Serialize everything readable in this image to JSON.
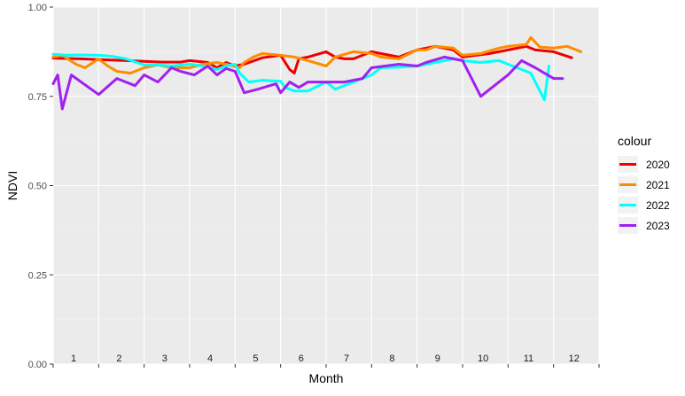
{
  "chart_data": {
    "type": "line",
    "xlabel": "Month",
    "ylabel": "NDVI",
    "xlim": [
      1,
      13
    ],
    "ylim": [
      0,
      1
    ],
    "x_tick_labels": [
      "1",
      "2",
      "3",
      "4",
      "5",
      "6",
      "7",
      "8",
      "9",
      "10",
      "11",
      "12"
    ],
    "y_ticks": [
      0,
      0.25,
      0.5,
      0.75,
      1.0
    ],
    "y_tick_labels": [
      "0.00",
      "0.25",
      "0.50",
      "0.75",
      "1.00"
    ],
    "grid": true,
    "background": "#EBEBEB",
    "legend": {
      "title": "colour",
      "placement": "right"
    },
    "series": [
      {
        "name": "2020",
        "color": "#EE0000",
        "x": [
          1.0,
          1.6,
          2.0,
          2.6,
          3.0,
          3.4,
          3.8,
          4.0,
          4.4,
          4.6,
          4.8,
          5.0,
          5.2,
          5.6,
          6.0,
          6.2,
          6.3,
          6.4,
          6.6,
          7.0,
          7.2,
          7.4,
          7.6,
          8.0,
          8.2,
          8.6,
          9.0,
          9.2,
          9.4,
          9.8,
          10.0,
          10.6,
          11.0,
          11.4,
          11.6,
          12.0,
          12.4
        ],
        "y": [
          0.857,
          0.855,
          0.853,
          0.85,
          0.848,
          0.846,
          0.846,
          0.85,
          0.845,
          0.83,
          0.845,
          0.835,
          0.84,
          0.858,
          0.865,
          0.825,
          0.815,
          0.855,
          0.86,
          0.875,
          0.86,
          0.855,
          0.855,
          0.875,
          0.87,
          0.86,
          0.88,
          0.885,
          0.89,
          0.88,
          0.86,
          0.87,
          0.88,
          0.89,
          0.88,
          0.875,
          0.858
        ]
      },
      {
        "name": "2021",
        "color": "#FF8C00",
        "x": [
          1.0,
          1.2,
          1.5,
          1.7,
          2.0,
          2.2,
          2.4,
          2.7,
          3.0,
          3.3,
          3.6,
          4.0,
          4.3,
          4.6,
          4.8,
          5.1,
          5.2,
          5.4,
          5.6,
          6.0,
          6.3,
          6.6,
          7.0,
          7.2,
          7.6,
          8.0,
          8.2,
          8.6,
          9.0,
          9.2,
          9.4,
          9.8,
          10.0,
          10.4,
          10.8,
          11.0,
          11.4,
          11.5,
          11.7,
          12.0,
          12.3,
          12.6
        ],
        "y": [
          0.86,
          0.865,
          0.84,
          0.83,
          0.855,
          0.835,
          0.82,
          0.815,
          0.83,
          0.838,
          0.83,
          0.83,
          0.84,
          0.845,
          0.84,
          0.83,
          0.845,
          0.86,
          0.87,
          0.865,
          0.86,
          0.85,
          0.835,
          0.86,
          0.875,
          0.87,
          0.86,
          0.855,
          0.88,
          0.88,
          0.89,
          0.885,
          0.865,
          0.87,
          0.885,
          0.89,
          0.895,
          0.915,
          0.888,
          0.885,
          0.89,
          0.875
        ]
      },
      {
        "name": "2022",
        "color": "#00FFFF",
        "x": [
          1.0,
          1.3,
          1.6,
          2.0,
          2.3,
          2.6,
          3.0,
          3.3,
          3.6,
          4.0,
          4.3,
          4.6,
          4.8,
          5.0,
          5.1,
          5.3,
          5.6,
          6.0,
          6.1,
          6.3,
          6.6,
          7.0,
          7.2,
          7.6,
          8.0,
          8.2,
          8.6,
          9.0,
          9.4,
          9.8,
          10.0,
          10.4,
          10.8,
          11.0,
          11.3,
          11.5,
          11.8,
          11.9
        ],
        "y": [
          0.868,
          0.865,
          0.866,
          0.865,
          0.862,
          0.855,
          0.838,
          0.838,
          0.835,
          0.84,
          0.835,
          0.825,
          0.835,
          0.84,
          0.815,
          0.79,
          0.795,
          0.792,
          0.775,
          0.765,
          0.765,
          0.79,
          0.77,
          0.79,
          0.81,
          0.83,
          0.832,
          0.835,
          0.845,
          0.855,
          0.85,
          0.845,
          0.85,
          0.84,
          0.825,
          0.815,
          0.74,
          0.835
        ]
      },
      {
        "name": "2023",
        "color": "#A020F0",
        "x": [
          1.0,
          1.1,
          1.2,
          1.4,
          2.0,
          2.4,
          2.8,
          3.0,
          3.3,
          3.6,
          3.8,
          4.1,
          4.4,
          4.6,
          4.8,
          5.0,
          5.2,
          5.5,
          5.9,
          6.0,
          6.2,
          6.4,
          6.6,
          7.0,
          7.4,
          7.8,
          8.0,
          8.3,
          8.6,
          9.0,
          9.2,
          9.6,
          10.0,
          10.4,
          10.8,
          11.0,
          11.3,
          11.6,
          12.0,
          12.2
        ],
        "y": [
          0.785,
          0.81,
          0.715,
          0.81,
          0.755,
          0.8,
          0.78,
          0.81,
          0.79,
          0.83,
          0.82,
          0.81,
          0.835,
          0.81,
          0.828,
          0.82,
          0.76,
          0.77,
          0.785,
          0.76,
          0.79,
          0.775,
          0.79,
          0.79,
          0.79,
          0.8,
          0.83,
          0.835,
          0.84,
          0.835,
          0.845,
          0.86,
          0.85,
          0.75,
          0.79,
          0.81,
          0.85,
          0.83,
          0.8,
          0.8
        ]
      }
    ]
  }
}
